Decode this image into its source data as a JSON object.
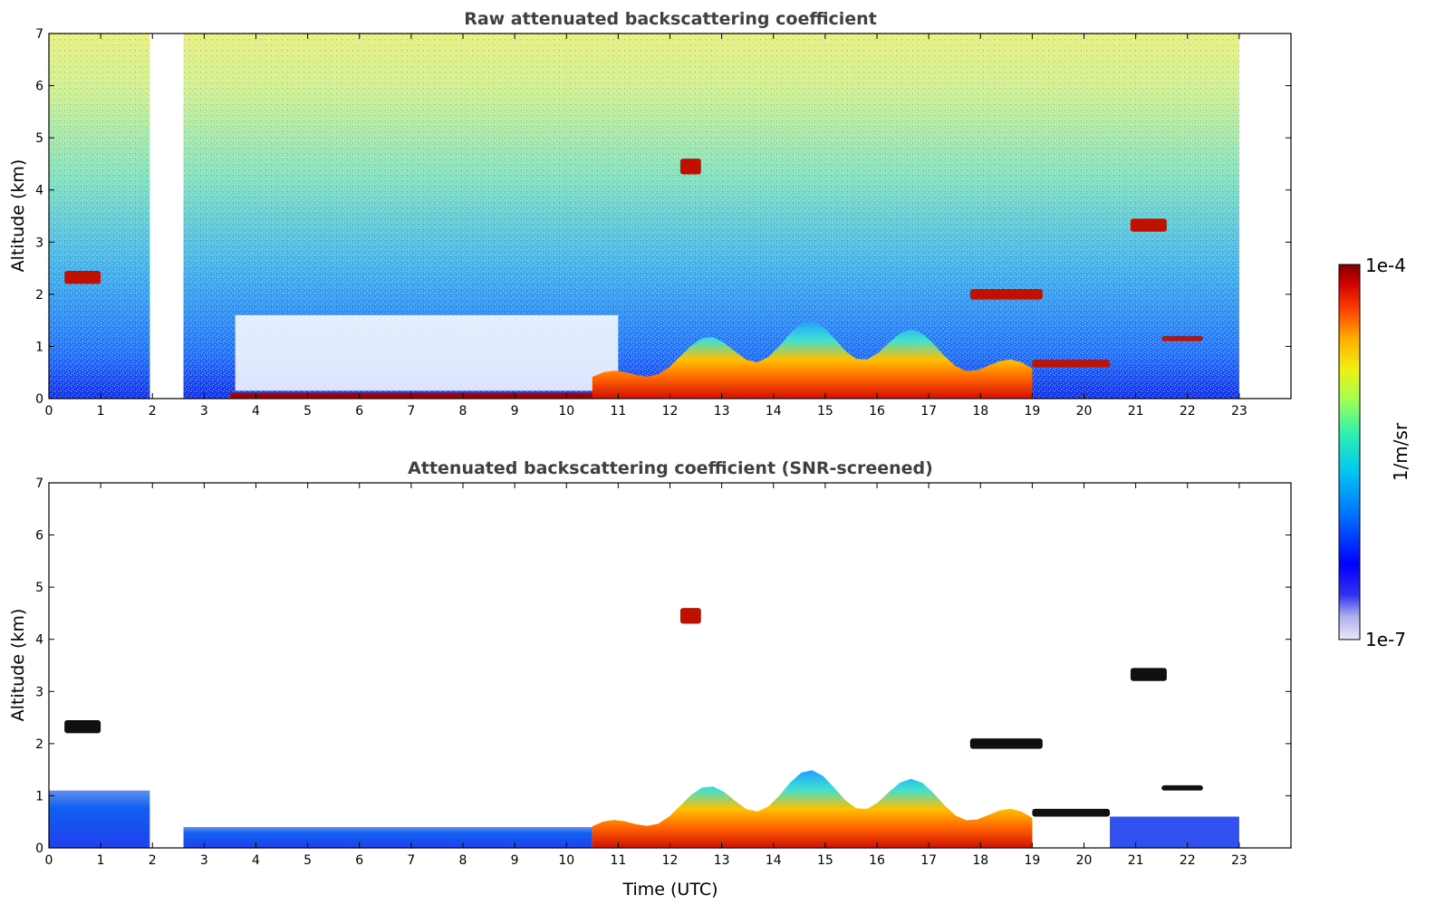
{
  "chart_data": [
    {
      "type": "heatmap",
      "title": "Raw attenuated backscattering coefficient",
      "xlabel": "",
      "ylabel": "Altitude (km)",
      "xlim": [
        0,
        24
      ],
      "ylim": [
        0,
        7
      ],
      "xticks": [
        0,
        1,
        2,
        3,
        4,
        5,
        6,
        7,
        8,
        9,
        10,
        11,
        12,
        13,
        14,
        15,
        16,
        17,
        18,
        19,
        20,
        21,
        22,
        23
      ],
      "yticks": [
        0,
        1,
        2,
        3,
        4,
        5,
        6,
        7
      ],
      "data_gap_utc": [
        1.95,
        2.6
      ],
      "data_end_utc": 23,
      "features": [
        {
          "kind": "boundary_layer_aerosol",
          "time_utc": [
            3.5,
            10.5
          ],
          "altitude_km": [
            0,
            0.1
          ],
          "intensity": "high"
        },
        {
          "kind": "boundary_layer_growth",
          "time_utc": [
            10.5,
            19
          ],
          "altitude_km": [
            0,
            1.5
          ],
          "intensity": "high"
        },
        {
          "kind": "cloud",
          "time_utc": [
            12.2,
            12.6
          ],
          "altitude_km": [
            4.3,
            4.6
          ],
          "intensity": "high"
        },
        {
          "kind": "cloud",
          "time_utc": [
            0.3,
            1.0
          ],
          "altitude_km": [
            2.2,
            2.45
          ],
          "intensity": "high"
        },
        {
          "kind": "cloud",
          "time_utc": [
            17.8,
            19.2
          ],
          "altitude_km": [
            1.9,
            2.1
          ],
          "intensity": "high"
        },
        {
          "kind": "cloud",
          "time_utc": [
            20.9,
            21.6
          ],
          "altitude_km": [
            3.2,
            3.45
          ],
          "intensity": "high"
        },
        {
          "kind": "cloud",
          "time_utc": [
            21.5,
            22.3
          ],
          "altitude_km": [
            1.1,
            1.2
          ],
          "intensity": "high"
        },
        {
          "kind": "cloud",
          "time_utc": [
            19.0,
            20.5
          ],
          "altitude_km": [
            0.6,
            0.75
          ],
          "intensity": "high"
        },
        {
          "kind": "background_noise",
          "time_utc": [
            0,
            23
          ],
          "altitude_km": [
            1,
            7
          ],
          "intensity": "noisy"
        }
      ]
    },
    {
      "type": "heatmap",
      "title": "Attenuated backscattering coefficient (SNR-screened)",
      "xlabel": "Time (UTC)",
      "ylabel": "Altitude (km)",
      "xlim": [
        0,
        24
      ],
      "ylim": [
        0,
        7
      ],
      "xticks": [
        0,
        1,
        2,
        3,
        4,
        5,
        6,
        7,
        8,
        9,
        10,
        11,
        12,
        13,
        14,
        15,
        16,
        17,
        18,
        19,
        20,
        21,
        22,
        23
      ],
      "yticks": [
        0,
        1,
        2,
        3,
        4,
        5,
        6,
        7
      ],
      "data_gap_utc": [
        1.95,
        2.6
      ],
      "data_end_utc": 23,
      "features": [
        {
          "kind": "boundary_layer_aerosol",
          "time_utc": [
            0,
            1.95
          ],
          "altitude_km": [
            0,
            1.1
          ],
          "intensity": "low"
        },
        {
          "kind": "boundary_layer_aerosol",
          "time_utc": [
            2.6,
            10.5
          ],
          "altitude_km": [
            0,
            0.4
          ],
          "intensity": "low"
        },
        {
          "kind": "boundary_layer_growth",
          "time_utc": [
            10.5,
            19
          ],
          "altitude_km": [
            0,
            1.5
          ],
          "intensity": "high"
        },
        {
          "kind": "cloud",
          "time_utc": [
            12.2,
            12.6
          ],
          "altitude_km": [
            4.3,
            4.6
          ],
          "intensity": "high"
        },
        {
          "kind": "cloud",
          "time_utc": [
            0.3,
            1.0
          ],
          "altitude_km": [
            2.2,
            2.45
          ],
          "intensity": "attenuated"
        },
        {
          "kind": "cloud",
          "time_utc": [
            17.8,
            19.2
          ],
          "altitude_km": [
            1.9,
            2.1
          ],
          "intensity": "attenuated"
        },
        {
          "kind": "cloud",
          "time_utc": [
            20.9,
            21.6
          ],
          "altitude_km": [
            3.2,
            3.45
          ],
          "intensity": "attenuated"
        },
        {
          "kind": "cloud",
          "time_utc": [
            21.5,
            22.3
          ],
          "altitude_km": [
            1.1,
            1.2
          ],
          "intensity": "attenuated"
        },
        {
          "kind": "cloud",
          "time_utc": [
            19.0,
            20.5
          ],
          "altitude_km": [
            0.6,
            0.75
          ],
          "intensity": "attenuated"
        },
        {
          "kind": "residual_layer",
          "time_utc": [
            20.5,
            23
          ],
          "altitude_km": [
            0,
            0.6
          ],
          "intensity": "low"
        }
      ]
    }
  ],
  "colorbar": {
    "max_label": "1e-4",
    "min_label": "1e-7",
    "unit_label": "1/m/sr",
    "colors": [
      "#e8e8f8",
      "#b8b8f0",
      "#8080f0",
      "#2020f0",
      "#0050ff",
      "#0090ff",
      "#00c8f0",
      "#20f0c0",
      "#80ff60",
      "#d0f020",
      "#ffe000",
      "#ffa000",
      "#ff5000",
      "#e00000",
      "#800000"
    ]
  }
}
